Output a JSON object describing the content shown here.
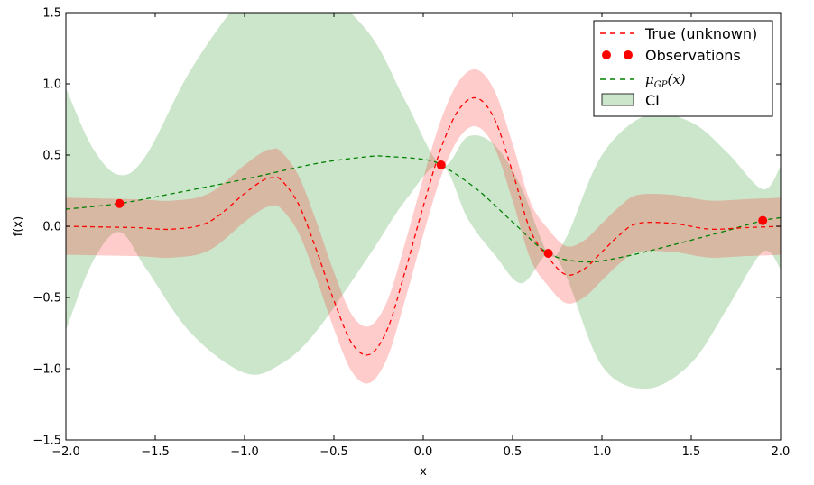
{
  "chart_data": {
    "type": "line",
    "xlabel": "x",
    "ylabel": "f(x)",
    "xlim": [
      -2.0,
      2.0
    ],
    "ylim": [
      -1.5,
      1.5
    ],
    "grid": false,
    "legend_placement": "top-right",
    "x_ticks": [
      "−2.0",
      "−1.5",
      "−1.0",
      "−0.5",
      "0.0",
      "0.5",
      "1.0",
      "1.5",
      "2.0"
    ],
    "y_ticks": [
      "−1.5",
      "−1.0",
      "−0.5",
      "0.0",
      "0.5",
      "1.0",
      "1.5"
    ],
    "colors": {
      "true_fn": "#ff0000",
      "observations": "#ff0000",
      "gp_mean": "#008000",
      "ci_fill": "#008000",
      "true_band": "#ff0000"
    },
    "legend": {
      "true_fn": "True (unknown)",
      "observations": "Observations",
      "gp_mean_base": "μ",
      "gp_mean_sub": "GP",
      "gp_mean_arg": "(x)",
      "ci": "CI"
    },
    "series": [
      {
        "name": "True (unknown)",
        "style": "dashed",
        "x": [
          -2.0,
          -1.8,
          -1.6,
          -1.4,
          -1.2,
          -1.0,
          -0.9,
          -0.85,
          -0.8,
          -0.7,
          -0.6,
          -0.5,
          -0.4,
          -0.3,
          -0.2,
          -0.1,
          0.0,
          0.1,
          0.2,
          0.3,
          0.4,
          0.5,
          0.6,
          0.7,
          0.8,
          0.9,
          1.0,
          1.1,
          1.2,
          1.4,
          1.6,
          1.8,
          2.0
        ],
        "y": [
          0.0,
          -0.005,
          -0.01,
          -0.02,
          0.03,
          0.23,
          0.32,
          0.34,
          0.33,
          0.16,
          -0.16,
          -0.52,
          -0.82,
          -0.9,
          -0.72,
          -0.31,
          0.14,
          0.55,
          0.82,
          0.9,
          0.75,
          0.38,
          -0.03,
          -0.22,
          -0.34,
          -0.3,
          -0.18,
          -0.06,
          0.02,
          0.02,
          -0.02,
          -0.01,
          0.0
        ]
      },
      {
        "name": "Observations",
        "style": "markers",
        "x": [
          -1.7,
          0.1,
          0.7,
          1.9
        ],
        "y": [
          0.16,
          0.43,
          -0.19,
          0.04
        ]
      },
      {
        "name": "μGP(x)",
        "style": "dashed",
        "x": [
          -2.0,
          -1.7,
          -1.4,
          -1.0,
          -0.6,
          -0.3,
          -0.2,
          0.0,
          0.1,
          0.3,
          0.5,
          0.7,
          0.9,
          1.1,
          1.4,
          1.7,
          1.9,
          2.0
        ],
        "y": [
          0.12,
          0.16,
          0.23,
          0.33,
          0.44,
          0.49,
          0.49,
          0.47,
          0.43,
          0.26,
          0.03,
          -0.19,
          -0.25,
          -0.22,
          -0.13,
          -0.03,
          0.04,
          0.06
        ]
      },
      {
        "name": "CI",
        "style": "band",
        "x": [
          -2.0,
          -1.85,
          -1.7,
          -1.55,
          -1.3,
          -1.0,
          -0.8,
          -0.6,
          -0.3,
          -0.1,
          0.1,
          0.25,
          0.4,
          0.55,
          0.7,
          0.8,
          1.0,
          1.25,
          1.5,
          1.7,
          1.9,
          2.0
        ],
        "upper": [
          0.97,
          0.55,
          0.36,
          0.5,
          1.1,
          1.62,
          1.75,
          1.7,
          1.35,
          0.88,
          0.43,
          0.63,
          0.57,
          0.27,
          -0.19,
          -0.08,
          0.5,
          0.78,
          0.73,
          0.52,
          0.26,
          0.42
        ],
        "lower": [
          -0.73,
          -0.25,
          -0.04,
          -0.3,
          -0.75,
          -1.03,
          -0.97,
          -0.74,
          -0.2,
          0.18,
          0.43,
          0.05,
          -0.2,
          -0.4,
          -0.19,
          -0.35,
          -0.98,
          -1.14,
          -0.96,
          -0.58,
          -0.18,
          -0.3
        ]
      },
      {
        "name": "True function uncertainty band",
        "style": "band",
        "x": [
          -2.0,
          -1.8,
          -1.6,
          -1.4,
          -1.2,
          -1.0,
          -0.9,
          -0.85,
          -0.8,
          -0.7,
          -0.6,
          -0.5,
          -0.4,
          -0.3,
          -0.2,
          -0.1,
          0.0,
          0.1,
          0.2,
          0.3,
          0.4,
          0.5,
          0.6,
          0.7,
          0.8,
          0.9,
          1.0,
          1.1,
          1.2,
          1.4,
          1.6,
          1.8,
          2.0
        ],
        "upper": [
          0.2,
          0.195,
          0.19,
          0.18,
          0.23,
          0.43,
          0.52,
          0.54,
          0.53,
          0.36,
          0.04,
          -0.32,
          -0.62,
          -0.7,
          -0.52,
          -0.11,
          0.34,
          0.75,
          1.02,
          1.1,
          0.95,
          0.58,
          0.17,
          -0.02,
          -0.14,
          -0.1,
          0.02,
          0.14,
          0.22,
          0.22,
          0.18,
          0.19,
          0.2
        ],
        "lower": [
          -0.2,
          -0.205,
          -0.21,
          -0.22,
          -0.17,
          0.03,
          0.12,
          0.14,
          0.13,
          -0.04,
          -0.36,
          -0.72,
          -1.02,
          -1.1,
          -0.92,
          -0.51,
          -0.06,
          0.35,
          0.62,
          0.7,
          0.55,
          0.18,
          -0.23,
          -0.42,
          -0.54,
          -0.5,
          -0.38,
          -0.26,
          -0.18,
          -0.18,
          -0.22,
          -0.21,
          -0.2
        ]
      }
    ]
  }
}
